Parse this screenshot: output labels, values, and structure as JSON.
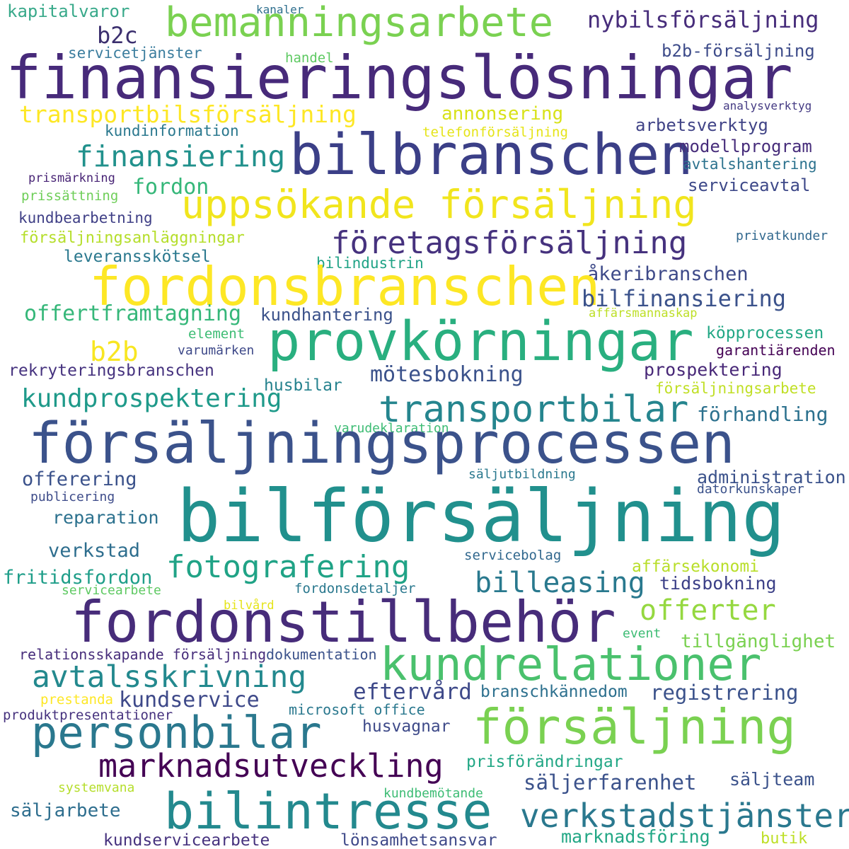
{
  "cloud": {
    "words": [
      {
        "text": "kapitalvaror",
        "color": "#38a98a"
      },
      {
        "text": "kanaler",
        "color": "#2e6f8e"
      },
      {
        "text": "bemanningsarbete",
        "color": "#7ad151"
      },
      {
        "text": "nybilsförsäljning",
        "color": "#472d7b"
      },
      {
        "text": "b2c",
        "color": "#3b2f6e"
      },
      {
        "text": "servicetjänster",
        "color": "#3b7d9e"
      },
      {
        "text": "handel",
        "color": "#5ec962"
      },
      {
        "text": "b2b-försäljning",
        "color": "#3e4c8a"
      },
      {
        "text": "finansieringslösningar",
        "color": "#472a7a"
      },
      {
        "text": "analysverktyg",
        "color": "#443a83"
      },
      {
        "text": "transportbilsförsäljning",
        "color": "#fde725"
      },
      {
        "text": "annonsering",
        "color": "#d8e219"
      },
      {
        "text": "kundinformation",
        "color": "#2a788e"
      },
      {
        "text": "telefonförsäljning",
        "color": "#e5e419"
      },
      {
        "text": "arbetsverktyg",
        "color": "#414487"
      },
      {
        "text": "bilbranschen",
        "color": "#3b3f87"
      },
      {
        "text": "finansiering",
        "color": "#21918c"
      },
      {
        "text": "modellprogram",
        "color": "#472d7b"
      },
      {
        "text": "avtalshantering",
        "color": "#2c728e"
      },
      {
        "text": "prismärkning",
        "color": "#482475"
      },
      {
        "text": "fordon",
        "color": "#35b779"
      },
      {
        "text": "serviceavtal",
        "color": "#3e4989"
      },
      {
        "text": "prissättning",
        "color": "#6ece58"
      },
      {
        "text": "uppsökande försäljning",
        "color": "#f1e51d"
      },
      {
        "text": "kundbearbetning",
        "color": "#3f3f86"
      },
      {
        "text": "privatkunder",
        "color": "#31688e"
      },
      {
        "text": "försäljningsanläggningar",
        "color": "#b5de2b"
      },
      {
        "text": "företagsförsäljning",
        "color": "#46327e"
      },
      {
        "text": "leveransskötsel",
        "color": "#2a788e"
      },
      {
        "text": "bilindustrin",
        "color": "#20a386"
      },
      {
        "text": "åkeribranschen",
        "color": "#3e4a89"
      },
      {
        "text": "fordonsbranschen",
        "color": "#fde725"
      },
      {
        "text": "bilfinansiering",
        "color": "#3b528b"
      },
      {
        "text": "offertframtagning",
        "color": "#35b779"
      },
      {
        "text": "kundhantering",
        "color": "#3b528b"
      },
      {
        "text": "affärsmannaskap",
        "color": "#bddf26"
      },
      {
        "text": "b2b",
        "color": "#f8e621"
      },
      {
        "text": "element",
        "color": "#3dbc74"
      },
      {
        "text": "varumärken",
        "color": "#3e4989"
      },
      {
        "text": "provkörningar",
        "color": "#29af7f"
      },
      {
        "text": "köpprocessen",
        "color": "#22a785"
      },
      {
        "text": "garantiärenden",
        "color": "#440154"
      },
      {
        "text": "rekryteringsbranschen",
        "color": "#46337f"
      },
      {
        "text": "mötesbokning",
        "color": "#3b528b"
      },
      {
        "text": "prospektering",
        "color": "#482878"
      },
      {
        "text": "husbilar",
        "color": "#26828e"
      },
      {
        "text": "försäljningsarbete",
        "color": "#c0df25"
      },
      {
        "text": "kundprospektering",
        "color": "#1f9a8a"
      },
      {
        "text": "transportbilar",
        "color": "#25858e"
      },
      {
        "text": "förhandling",
        "color": "#2c718e"
      },
      {
        "text": "varudeklaration",
        "color": "#3dbc74"
      },
      {
        "text": "försäljningsprocessen",
        "color": "#3b528b"
      },
      {
        "text": "säljutbildning",
        "color": "#2a788e"
      },
      {
        "text": "offerering",
        "color": "#3b528b"
      },
      {
        "text": "administration",
        "color": "#3b528b"
      },
      {
        "text": "datorkunskaper",
        "color": "#3b528b"
      },
      {
        "text": "publicering",
        "color": "#3e4c8a"
      },
      {
        "text": "bilförsäljning",
        "color": "#21908d"
      },
      {
        "text": "reparation",
        "color": "#2c718e"
      },
      {
        "text": "verkstad",
        "color": "#2e6e8e"
      },
      {
        "text": "servicebolag",
        "color": "#31688e"
      },
      {
        "text": "fotografering",
        "color": "#20a386"
      },
      {
        "text": "affärsekonomi",
        "color": "#b8de29"
      },
      {
        "text": "fritidsfordon",
        "color": "#1f9e89"
      },
      {
        "text": "billeasing",
        "color": "#29798e"
      },
      {
        "text": "tidsbokning",
        "color": "#3b3f87"
      },
      {
        "text": "servicearbete",
        "color": "#5ec962"
      },
      {
        "text": "fordonsdetaljer",
        "color": "#2a788e"
      },
      {
        "text": "bilvård",
        "color": "#e5e419"
      },
      {
        "text": "fordonstillbehör",
        "color": "#472c7a"
      },
      {
        "text": "offerter",
        "color": "#95d840"
      },
      {
        "text": "event",
        "color": "#3dbc74"
      },
      {
        "text": "tillgänglighet",
        "color": "#7ad151"
      },
      {
        "text": "relationsskapande försäljning",
        "color": "#472d7b"
      },
      {
        "text": "dokumentation",
        "color": "#3b528b"
      },
      {
        "text": "kundrelationer",
        "color": "#4ac16d"
      },
      {
        "text": "avtalsskrivning",
        "color": "#23898e"
      },
      {
        "text": "eftervård",
        "color": "#3e4989"
      },
      {
        "text": "registrering",
        "color": "#3b528b"
      },
      {
        "text": "branschkännedom",
        "color": "#2d708e"
      },
      {
        "text": "kundservice",
        "color": "#3e4989"
      },
      {
        "text": "prestanda",
        "color": "#fde725"
      },
      {
        "text": "microsoft office",
        "color": "#2a788e"
      },
      {
        "text": "produktpresentationer",
        "color": "#46327e"
      },
      {
        "text": "personbilar",
        "color": "#2a788e"
      },
      {
        "text": "försäljning",
        "color": "#7ad151"
      },
      {
        "text": "husvagnar",
        "color": "#3e4a89"
      },
      {
        "text": "marknadsutveckling",
        "color": "#440154"
      },
      {
        "text": "prisförändringar",
        "color": "#22a785"
      },
      {
        "text": "säljerfarenhet",
        "color": "#3b528b"
      },
      {
        "text": "säljteam",
        "color": "#3b528b"
      },
      {
        "text": "systemvana",
        "color": "#b5de2b"
      },
      {
        "text": "kundbemötande",
        "color": "#3dbc74"
      },
      {
        "text": "bilintresse",
        "color": "#23898e"
      },
      {
        "text": "verkstadstjänster",
        "color": "#2a788e"
      },
      {
        "text": "säljarbete",
        "color": "#2e6e8e"
      },
      {
        "text": "kundservicearbete",
        "color": "#46327e"
      },
      {
        "text": "lönsamhetsansvar",
        "color": "#3e4989"
      },
      {
        "text": "marknadsföring",
        "color": "#22a785"
      },
      {
        "text": "butik",
        "color": "#bddf26"
      }
    ]
  }
}
